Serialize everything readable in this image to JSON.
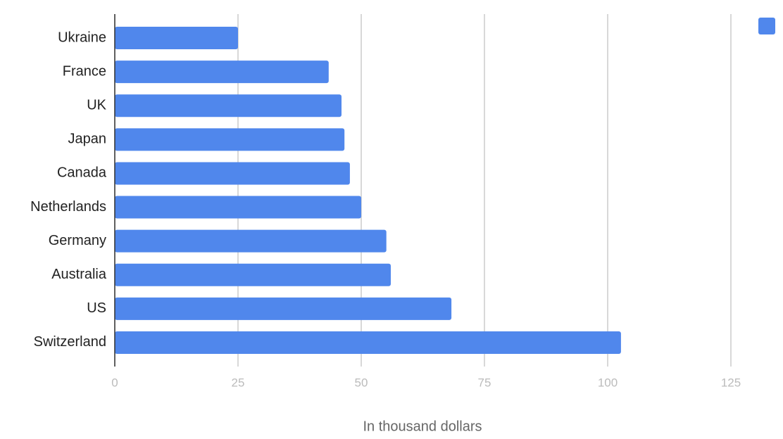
{
  "chart_data": {
    "type": "hbar",
    "x_label": "In thousand dollars",
    "categories": [
      "Ukraine",
      "France",
      "UK",
      "Japan",
      "Canada",
      "Netherlands",
      "Germany",
      "Australia",
      "US",
      "Switzerland"
    ],
    "values": [
      25,
      43.4,
      46,
      46.6,
      47.7,
      50,
      55.1,
      56,
      68.3,
      102.7
    ],
    "color": "#5087ec",
    "xlim": [
      0,
      125
    ],
    "xticks": [
      0,
      25,
      50,
      75,
      100,
      125
    ],
    "grid": true,
    "legend": "top-right"
  }
}
